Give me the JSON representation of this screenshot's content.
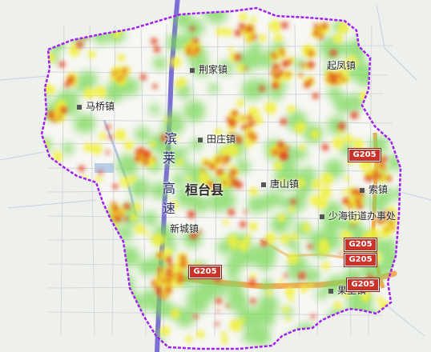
{
  "map": {
    "county_label": "桓台县",
    "towns": [
      {
        "id": "majiao",
        "name": "马桥镇"
      },
      {
        "id": "jingjia",
        "name": "荆家镇"
      },
      {
        "id": "qifeng",
        "name": "起凤镇"
      },
      {
        "id": "tianzhuang",
        "name": "田庄镇"
      },
      {
        "id": "tangshan",
        "name": "唐山镇"
      },
      {
        "id": "suo",
        "name": "索镇"
      },
      {
        "id": "shaohai",
        "name": "少海街道办事处"
      },
      {
        "id": "xincheng",
        "name": "新城镇"
      },
      {
        "id": "guoli",
        "name": "果里镇"
      }
    ],
    "expressway_chars": [
      "滨",
      "莱",
      "高",
      "速"
    ],
    "road_shields": [
      "G205",
      "G205",
      "G205",
      "G205",
      "G205"
    ],
    "colors": {
      "boundary": "#a020f0",
      "expressway": "#7b6fd6",
      "national_road": "#f4a85a",
      "background": "#eef0ec",
      "heat_low": "#7cd85a",
      "heat_mid": "#f1f03a",
      "heat_high": "#e0421c"
    }
  }
}
